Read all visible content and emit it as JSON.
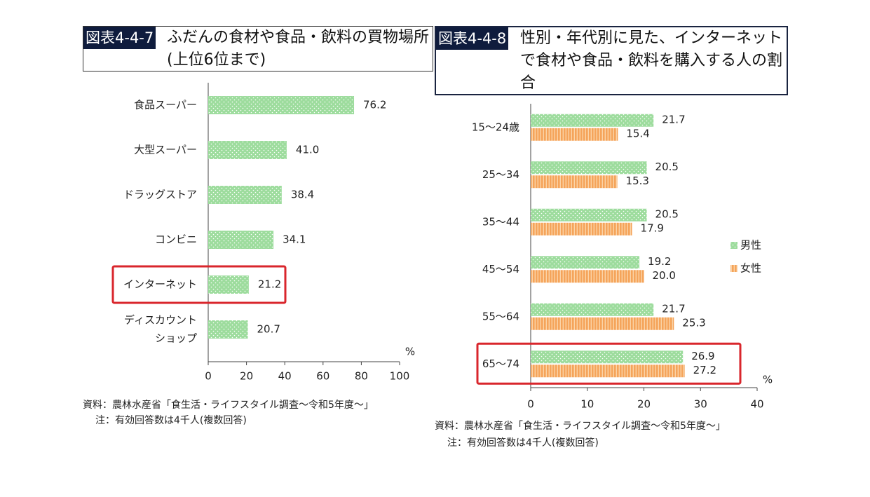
{
  "figure_1": {
    "label": "図表4-4-7",
    "title": "ふだんの食材や食品・飲料の買物場所(上位6位まで)",
    "unit": "%",
    "source": "資料：農林水産省「食生活・ライフスタイル調査～令和5年度～」",
    "note": "注：有効回答数は4千人(複数回答)"
  },
  "figure_2": {
    "label": "図表4-4-8",
    "title": "性別・年代別に見た、インターネットで食材や食品・飲料を購入する人の割合",
    "unit": "%",
    "source": "資料：農林水産省「食生活・ライフスタイル調査～令和5年度～」",
    "note": "注：有効回答数は4千人(複数回答)"
  },
  "colors": {
    "male": "#9ddc9d",
    "female": "#f5a45a",
    "highlight": "#d9262c",
    "title_bg": "#0f1c3d"
  },
  "chart_data": [
    {
      "type": "bar",
      "orientation": "horizontal",
      "categories": [
        "食品スーパー",
        "大型スーパー",
        "ドラッグストア",
        "コンビニ",
        "インターネット",
        "ディスカウント\nショップ"
      ],
      "values": [
        76.2,
        41.0,
        38.4,
        34.1,
        21.2,
        20.7
      ],
      "x_ticks": [
        0,
        20,
        40,
        60,
        80,
        100
      ],
      "xlim": [
        0,
        100
      ],
      "highlighted_category": "インターネット",
      "grid": false
    },
    {
      "type": "bar",
      "orientation": "horizontal",
      "categories": [
        "15～24歳",
        "25～34",
        "35～44",
        "45～54",
        "55～64",
        "65～74"
      ],
      "series": [
        {
          "name": "男性",
          "values": [
            21.7,
            20.5,
            20.5,
            19.2,
            21.7,
            26.9
          ]
        },
        {
          "name": "女性",
          "values": [
            15.4,
            15.3,
            17.9,
            20.0,
            25.3,
            27.2
          ]
        }
      ],
      "x_ticks": [
        0,
        10,
        20,
        30,
        40
      ],
      "xlim": [
        0,
        40
      ],
      "highlighted_category": "65～74",
      "legend": "right",
      "grid": false
    }
  ]
}
